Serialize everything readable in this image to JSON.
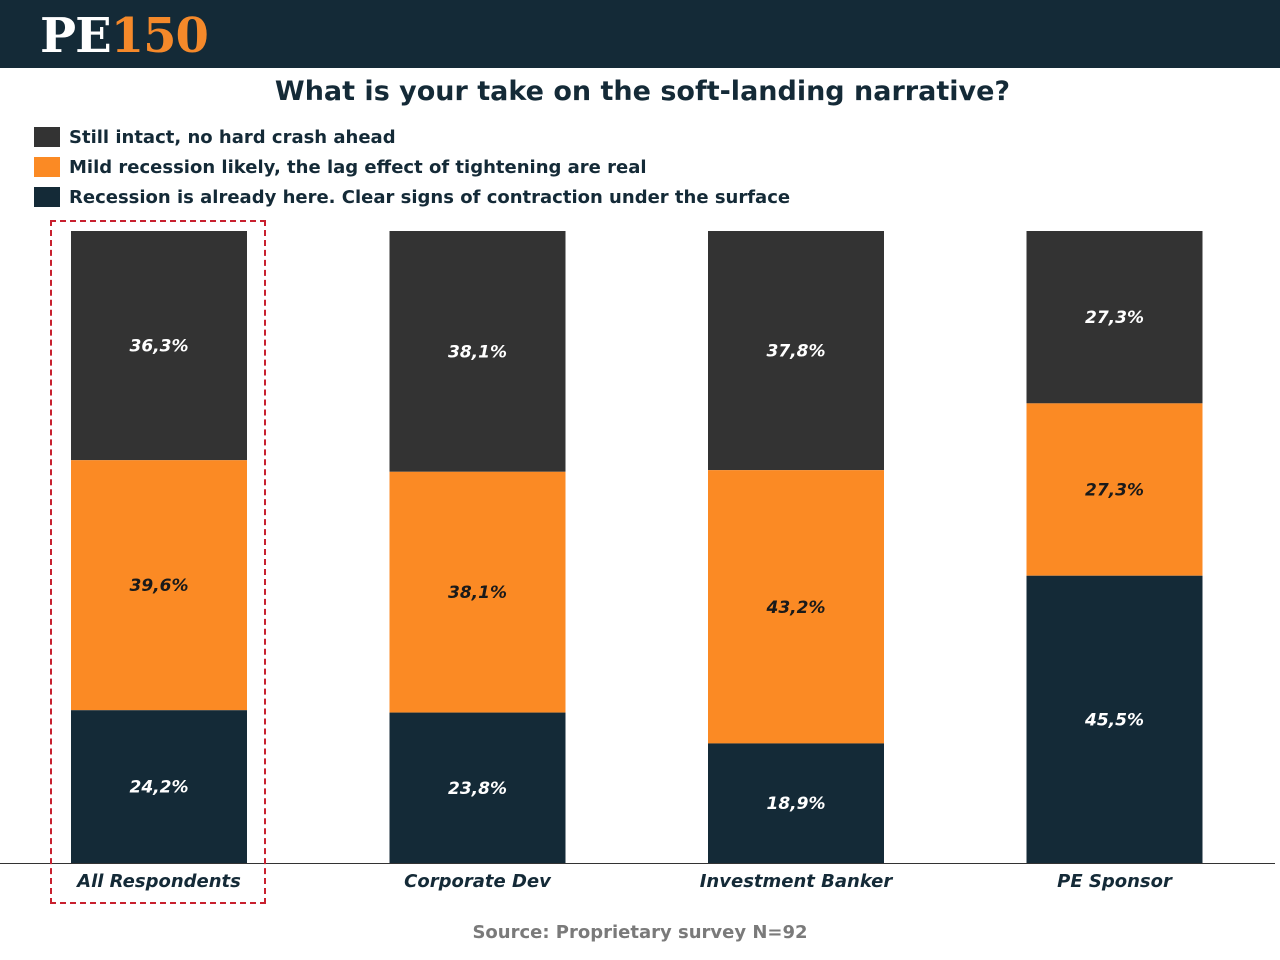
{
  "brand": {
    "logo_prefix": "PE",
    "logo_number": "150"
  },
  "colors": {
    "header_bg": "#142a37",
    "logo_accent": "#f5892a",
    "highlight_border": "#c8202f"
  },
  "chart_data": {
    "type": "bar",
    "stacked": true,
    "title": "What is your take on the soft-landing narrative?",
    "categories": [
      "All Respondents",
      "Corporate Dev",
      "Investment Banker",
      "PE Sponsor"
    ],
    "series": [
      {
        "name": "Still intact, no hard crash ahead",
        "color": "#333333",
        "values": [
          36.3,
          38.1,
          37.8,
          27.3
        ],
        "labels": [
          "36,3%",
          "38,1%",
          "37,8%",
          "27,3%"
        ]
      },
      {
        "name": "Mild recession likely, the lag effect of tightening are real",
        "color": "#fb8a24",
        "values": [
          39.6,
          38.1,
          43.2,
          27.3
        ],
        "labels": [
          "39,6%",
          "38,1%",
          "43,2%",
          "27,3%"
        ]
      },
      {
        "name": "Recession is already here. Clear signs of contraction under the surface",
        "color": "#142a37",
        "values": [
          24.2,
          23.8,
          18.9,
          45.5
        ],
        "labels": [
          "24,2%",
          "23,8%",
          "18,9%",
          "45,5%"
        ]
      }
    ],
    "highlighted_category": "All Respondents",
    "ylim": [
      0,
      100
    ],
    "legend_position": "top-left",
    "grid": false
  },
  "footer": {
    "source": "Source: Proprietary survey N=92"
  }
}
